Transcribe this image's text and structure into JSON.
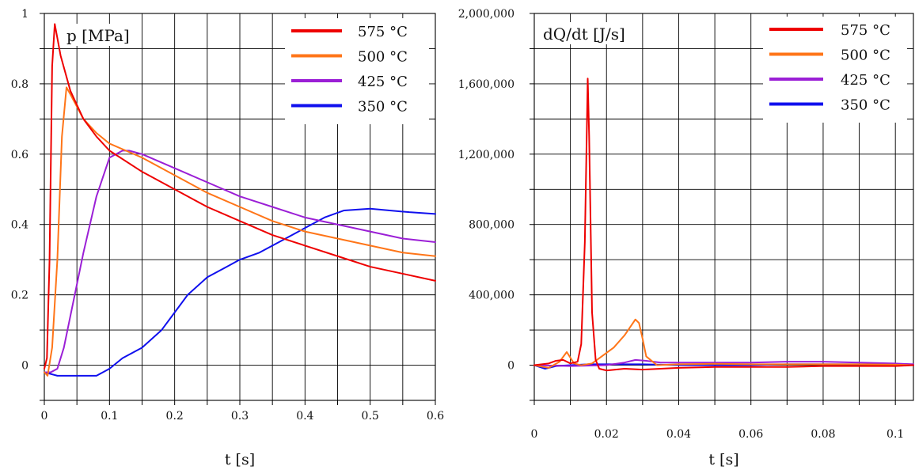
{
  "chart_data": [
    {
      "type": "line",
      "title": "p [MPa]",
      "xlabel": "t [s]",
      "ylabel": "",
      "xlim": [
        0,
        0.6
      ],
      "ylim": [
        -0.1,
        1.0
      ],
      "x_ticks": [
        0,
        0.1,
        0.2,
        0.3,
        0.4,
        0.5,
        0.6
      ],
      "x_tick_labels": [
        "0",
        "0.1",
        "0.2",
        "0.3",
        "0.4",
        "0.5",
        "0.6"
      ],
      "y_ticks": [
        0,
        0.2,
        0.4,
        0.6,
        0.8,
        1.0
      ],
      "y_tick_labels": [
        "0",
        "0.2",
        "0.4",
        "0.6",
        "0.8",
        "1"
      ],
      "grid": true,
      "legend_position": "top-right",
      "series": [
        {
          "name": "575 °C",
          "color": "#ee0000",
          "x": [
            0,
            0.004,
            0.008,
            0.012,
            0.016,
            0.025,
            0.04,
            0.06,
            0.08,
            0.1,
            0.15,
            0.2,
            0.25,
            0.3,
            0.35,
            0.4,
            0.45,
            0.5,
            0.55,
            0.6
          ],
          "y": [
            -0.01,
            0.02,
            0.3,
            0.85,
            0.97,
            0.88,
            0.78,
            0.7,
            0.65,
            0.61,
            0.55,
            0.5,
            0.45,
            0.41,
            0.37,
            0.34,
            0.31,
            0.28,
            0.26,
            0.24
          ]
        },
        {
          "name": "500 °C",
          "color": "#ff7518",
          "x": [
            0,
            0.005,
            0.012,
            0.02,
            0.027,
            0.034,
            0.04,
            0.06,
            0.08,
            0.1,
            0.15,
            0.2,
            0.25,
            0.3,
            0.35,
            0.4,
            0.45,
            0.5,
            0.55,
            0.6
          ],
          "y": [
            -0.02,
            -0.03,
            0.05,
            0.3,
            0.65,
            0.79,
            0.77,
            0.7,
            0.66,
            0.63,
            0.59,
            0.54,
            0.49,
            0.45,
            0.41,
            0.38,
            0.36,
            0.34,
            0.32,
            0.31
          ]
        },
        {
          "name": "425 °C",
          "color": "#9b1fd6",
          "x": [
            0,
            0.01,
            0.02,
            0.03,
            0.04,
            0.06,
            0.08,
            0.1,
            0.12,
            0.13,
            0.15,
            0.2,
            0.25,
            0.3,
            0.35,
            0.4,
            0.45,
            0.5,
            0.55,
            0.6
          ],
          "y": [
            -0.02,
            -0.02,
            -0.01,
            0.05,
            0.14,
            0.32,
            0.48,
            0.59,
            0.61,
            0.61,
            0.6,
            0.56,
            0.52,
            0.48,
            0.45,
            0.42,
            0.4,
            0.38,
            0.36,
            0.35
          ]
        },
        {
          "name": "350 °C",
          "color": "#1010ee",
          "x": [
            0,
            0.02,
            0.04,
            0.06,
            0.08,
            0.1,
            0.12,
            0.15,
            0.18,
            0.2,
            0.22,
            0.25,
            0.28,
            0.3,
            0.33,
            0.36,
            0.4,
            0.43,
            0.46,
            0.5,
            0.53,
            0.56,
            0.6
          ],
          "y": [
            -0.02,
            -0.03,
            -0.03,
            -0.03,
            -0.03,
            -0.01,
            0.02,
            0.05,
            0.1,
            0.15,
            0.2,
            0.25,
            0.28,
            0.3,
            0.32,
            0.35,
            0.39,
            0.42,
            0.44,
            0.445,
            0.44,
            0.435,
            0.43
          ]
        }
      ]
    },
    {
      "type": "line",
      "title": "dQ/dt [J/s]",
      "xlabel": "t [s]",
      "ylabel": "",
      "xlim": [
        0,
        0.105
      ],
      "ylim": [
        -200000,
        2000000
      ],
      "x_ticks": [
        0,
        0.02,
        0.04,
        0.06,
        0.08,
        0.1
      ],
      "x_tick_labels": [
        "0",
        "0.02",
        "0.04",
        "0.06",
        "0.08",
        "0.1"
      ],
      "y_ticks": [
        0,
        400000,
        800000,
        1200000,
        1600000,
        2000000
      ],
      "y_tick_labels": [
        "0",
        "400,000",
        "800,000",
        "1,200,000",
        "1,600,000",
        "2,000,000"
      ],
      "grid": true,
      "legend_position": "top-right",
      "series": [
        {
          "name": "575 °C",
          "color": "#ee0000",
          "x": [
            0,
            0.004,
            0.006,
            0.008,
            0.01,
            0.012,
            0.013,
            0.014,
            0.0148,
            0.0152,
            0.016,
            0.017,
            0.018,
            0.02,
            0.025,
            0.03,
            0.04,
            0.05,
            0.06,
            0.07,
            0.08,
            0.09,
            0.1,
            0.105
          ],
          "y": [
            0,
            10000,
            25000,
            30000,
            10000,
            20000,
            120000,
            700000,
            1630000,
            1300000,
            300000,
            30000,
            -20000,
            -30000,
            -20000,
            -25000,
            -15000,
            -10000,
            -10000,
            -10000,
            -5000,
            -5000,
            -5000,
            0
          ]
        },
        {
          "name": "500 °C",
          "color": "#ff7518",
          "x": [
            0,
            0.004,
            0.007,
            0.009,
            0.011,
            0.013,
            0.016,
            0.018,
            0.02,
            0.022,
            0.025,
            0.027,
            0.028,
            0.029,
            0.03,
            0.031,
            0.034,
            0.04,
            0.05,
            0.06,
            0.07,
            0.08,
            0.09,
            0.1,
            0.105
          ],
          "y": [
            0,
            -15000,
            20000,
            75000,
            10000,
            0,
            10000,
            40000,
            70000,
            100000,
            170000,
            230000,
            260000,
            240000,
            150000,
            50000,
            0,
            5000,
            8000,
            5000,
            5000,
            5000,
            5000,
            3000,
            0
          ]
        },
        {
          "name": "425 °C",
          "color": "#9b1fd6",
          "x": [
            0,
            0.01,
            0.02,
            0.025,
            0.028,
            0.031,
            0.035,
            0.04,
            0.05,
            0.06,
            0.07,
            0.08,
            0.09,
            0.1,
            0.105
          ],
          "y": [
            0,
            -5000,
            0,
            15000,
            30000,
            25000,
            15000,
            15000,
            15000,
            15000,
            20000,
            20000,
            15000,
            10000,
            5000
          ]
        },
        {
          "name": "350 °C",
          "color": "#1010ee",
          "x": [
            0,
            0.003,
            0.006,
            0.01,
            0.015,
            0.02,
            0.03,
            0.04,
            0.05,
            0.06,
            0.07,
            0.08,
            0.09,
            0.1,
            0.105
          ],
          "y": [
            0,
            -20000,
            -5000,
            0,
            5000,
            5000,
            5000,
            0,
            0,
            0,
            5000,
            5000,
            5000,
            5000,
            0
          ]
        }
      ]
    }
  ],
  "colors": {
    "grid": "#000000",
    "background": "#ffffff"
  }
}
